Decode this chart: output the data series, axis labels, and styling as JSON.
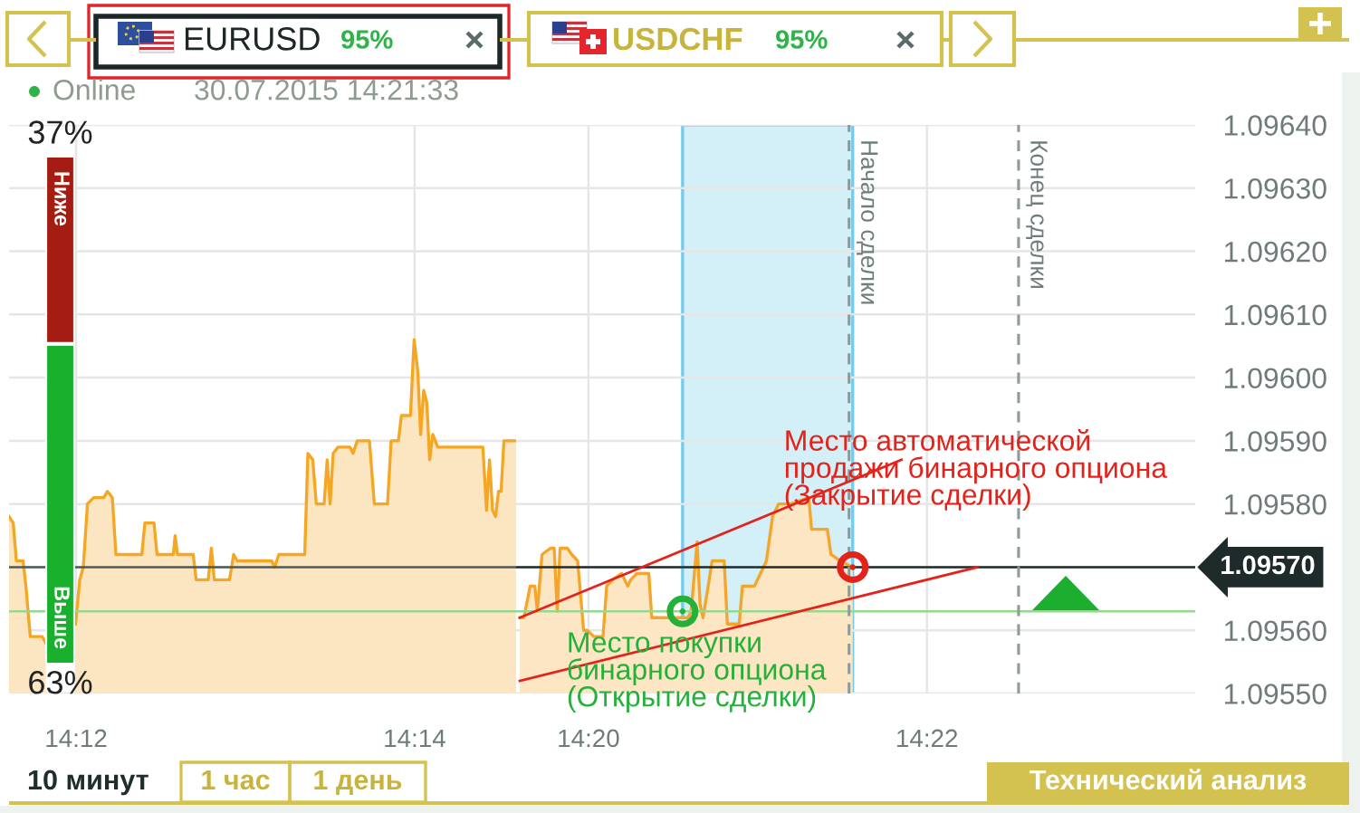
{
  "chart_data": [
    {
      "type": "other",
      "annotations": [
        "EURUSD",
        "95%",
        "USDCHF",
        "95%",
        "Online",
        "30.07.2015 14:21:33"
      ]
    },
    {
      "type": "bar",
      "stacked": true,
      "categories": [
        null
      ],
      "series": [
        {
          "name": "Выше",
          "color": "#18b02c",
          "values": [
            63
          ],
          "value_labels": [
            "63%"
          ]
        },
        {
          "name": "Ниже",
          "color": "#a51d12",
          "values": [
            37
          ],
          "value_labels": [
            "37%"
          ]
        }
      ]
    },
    {
      "type": "area",
      "tick_labels": "x",
      "grid": true,
      "xlim": [
        14.1934,
        14.24332
      ],
      "xticks": [
        {
          "value": 14.2,
          "label": "14:12"
        },
        {
          "value": 14.23333,
          "label": "14:14"
        }
      ],
      "ylim": [
        1.0955,
        1.0964
      ],
      "yticks": [
        1.0955,
        1.0956,
        1.0957,
        1.0958,
        1.0959,
        1.096,
        1.0961,
        1.0962,
        1.0963,
        1.0964
      ],
      "ref_lines": [
        {
          "axis": "y",
          "value": 1.0957,
          "color": "#4a5a5a"
        },
        {
          "axis": "y",
          "value": 1.09563,
          "color": "#93d98f"
        }
      ],
      "series": [
        {
          "color": "#f5a623",
          "x": [
            14.1934,
            14.19381,
            14.19412,
            14.19478,
            14.19506,
            14.19549,
            14.19667,
            14.19702,
            14.1984,
            14.19995,
            14.20036,
            14.20071,
            14.20112,
            14.20173,
            14.20273,
            14.20308,
            14.20357,
            14.20392,
            14.20647,
            14.20677,
            14.20767,
            14.20797,
            14.20957,
            14.20975,
            14.20998,
            14.21153,
            14.21182,
            14.21301,
            14.21332,
            14.2136,
            14.2151,
            14.21551,
            14.21586,
            14.21925,
            14.21955,
            14.21996,
            14.22251,
            14.22282,
            14.2233,
            14.22365,
            14.22442,
            14.22472,
            14.22501,
            14.22531,
            14.22579,
            14.22697,
            14.22727,
            14.22768,
            14.22888,
            14.22936,
            14.23066,
            14.23102,
            14.23173,
            14.23203,
            14.23292,
            14.23328,
            14.23364,
            14.23392,
            14.23422,
            14.23453,
            14.23481,
            14.23512,
            14.2356,
            14.24005,
            14.24041,
            14.2407,
            14.241,
            14.2413,
            14.24159,
            14.24184,
            14.24212,
            14.24332
          ],
          "values": [
            1.09578,
            1.09577,
            1.09571,
            1.09571,
            1.09567,
            1.09559,
            1.09559,
            1.09558,
            null,
            1.09561,
            1.09568,
            1.0957,
            1.0958,
            1.09581,
            1.09581,
            1.09582,
            1.09581,
            1.09572,
            1.09572,
            1.09577,
            1.09577,
            1.09572,
            1.09572,
            1.09575,
            1.09572,
            1.09572,
            1.09568,
            1.09568,
            1.09573,
            1.09568,
            1.09568,
            1.09572,
            1.09571,
            1.09571,
            1.0957,
            1.09572,
            1.09572,
            1.09588,
            1.09587,
            1.0958,
            1.0958,
            1.09587,
            1.0958,
            1.09588,
            1.09589,
            1.09589,
            1.09588,
            1.0959,
            1.0959,
            1.0958,
            1.0958,
            1.0959,
            1.0959,
            1.09594,
            1.09594,
            1.09606,
            1.09601,
            1.09591,
            1.09598,
            1.09596,
            1.09587,
            1.09591,
            1.09589,
            1.09589,
            1.09579,
            1.09587,
            1.09579,
            1.09578,
            1.09582,
            1.09582,
            1.0959,
            1.0959
          ]
        }
      ]
    },
    {
      "type": "area",
      "grid": true,
      "xlim": [
        14.3262,
        14.3931
      ],
      "xticks": [
        {
          "value": 14.33333,
          "label": "14:20"
        },
        {
          "value": 14.36667,
          "label": "14:22"
        }
      ],
      "ylim": [
        1.0955,
        1.0964
      ],
      "yticks": [
        {
          "value": 1.0955,
          "label": "1.09550"
        },
        {
          "value": 1.0956,
          "label": "1.09560"
        },
        {
          "value": 1.0957,
          "label": null
        },
        {
          "value": 1.0958,
          "label": "1.09580"
        },
        {
          "value": 1.0959,
          "label": "1.09590"
        },
        {
          "value": 1.096,
          "label": "1.09600"
        },
        {
          "value": 1.0961,
          "label": "1.09610"
        },
        {
          "value": 1.0962,
          "label": "1.09620"
        },
        {
          "value": 1.0963,
          "label": "1.09630"
        },
        {
          "value": 1.0964,
          "label": "1.09640"
        }
      ],
      "bands": [
        {
          "axis": "x",
          "from": 14.3426,
          "to": 14.35936,
          "color": "#d3eff7"
        }
      ],
      "ref_lines": [
        {
          "axis": "y",
          "value": 1.0957,
          "label": "1.09570",
          "color": "#1f2b2b"
        },
        {
          "axis": "y",
          "value": 1.09563,
          "color": "#93d98f"
        },
        {
          "axis": "x",
          "value": 14.359,
          "label": "Начало сделки",
          "color": "#8c9a9a",
          "line_style": "dashed"
        },
        {
          "axis": "x",
          "value": 14.3757,
          "label": "Конец сделки",
          "color": "#8c9a9a",
          "line_style": "dashed"
        }
      ],
      "series": [
        {
          "color": "#f4a52a",
          "x": [
            14.32657,
            14.32697,
            14.32758,
            14.32804,
            14.32829,
            14.32875,
            14.32959,
            14.32995,
            14.33025,
            14.33053,
            14.33125,
            14.33168,
            14.33226,
            14.33285,
            14.33321,
            14.33387,
            14.33476,
            14.33512,
            14.3357,
            14.3366,
            14.3372,
            14.33749,
            14.33809,
            14.33927,
            14.33957,
            14.34077,
            14.34166,
            14.34314,
            14.34344,
            14.34403,
            14.34433,
            14.34462,
            14.34522,
            14.34551,
            14.34611,
            14.3467,
            14.34701,
            14.34818,
            14.34849,
            14.34968,
            14.35027,
            14.35086,
            14.35146,
            14.35205,
            14.35324,
            14.35503,
            14.35531,
            14.35686,
            14.35722,
            14.35811,
            14.35936
          ],
          "values": [
            1.09562,
            1.09562,
            1.09567,
            1.09567,
            1.09563,
            1.09572,
            1.09573,
            1.09573,
            1.09563,
            1.09573,
            1.09573,
            1.09572,
            1.09571,
            1.0956,
            1.0956,
            1.09559,
            1.09559,
            1.09567,
            1.09568,
            1.09569,
            1.09567,
            1.09568,
            1.09569,
            1.09569,
            1.09562,
            1.09562,
            1.09562,
            1.09562,
            1.09563,
            1.09574,
            1.09564,
            1.09562,
            1.09568,
            1.09571,
            1.09571,
            1.09571,
            1.09561,
            1.09561,
            1.09567,
            1.09567,
            1.09569,
            1.09571,
            1.09578,
            1.0958,
            1.0958,
            1.09581,
            1.09576,
            1.09576,
            1.09572,
            1.09571,
            1.0957
          ]
        },
        {
          "type": "line",
          "color": "#e3231b",
          "x": [
            14.32656,
            14.36417
          ],
          "values": [
            1.09562,
            1.09587
          ]
        },
        {
          "type": "line",
          "color": "#e3231b",
          "x": [
            14.32656,
            14.37166
          ],
          "values": [
            1.09552,
            1.0957
          ]
        }
      ],
      "annotations": [
        {
          "text": "Место покупки\nбинарного опциона\n(Открытие сделки)",
          "x": 14.3426,
          "y": 1.09563
        },
        {
          "text": "Место автоматической\nпродажи бинарного опциона\n(Закрытие сделки)",
          "x": 14.35936,
          "y": 1.0957
        }
      ]
    },
    {
      "type": "other",
      "annotations": [
        "10 минут",
        "1 час",
        "1 день",
        "Технический анализ"
      ]
    }
  ]
}
